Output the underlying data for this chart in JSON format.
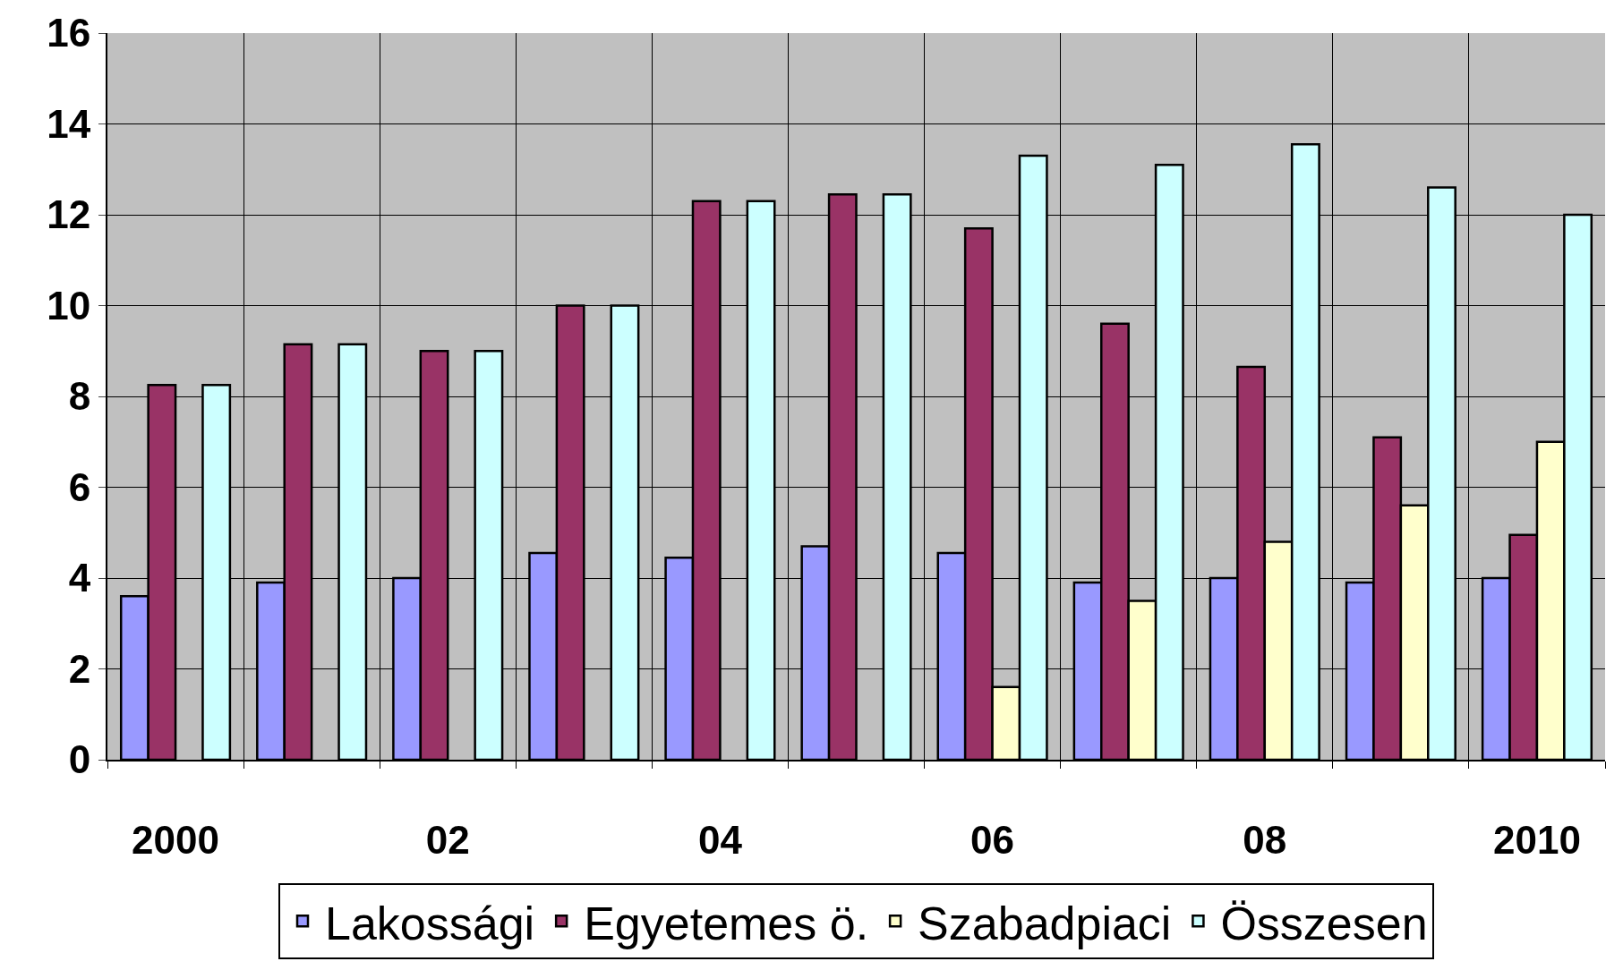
{
  "chart_data": {
    "type": "bar",
    "categories": [
      "2000",
      null,
      "02",
      null,
      "04",
      null,
      "06",
      null,
      "08",
      null,
      "2010"
    ],
    "series": [
      {
        "name": "Lakossági",
        "color": "#9999ff",
        "values": [
          3.6,
          3.9,
          4.0,
          4.55,
          4.45,
          4.7,
          4.55,
          3.9,
          4.0,
          3.9,
          4.0
        ]
      },
      {
        "name": "Egyetemes ö.",
        "color": "#993366",
        "values": [
          8.25,
          9.15,
          9.0,
          10.0,
          12.3,
          12.45,
          11.7,
          9.6,
          8.65,
          7.1,
          4.95
        ]
      },
      {
        "name": "Szabadpiaci",
        "color": "#ffffcc",
        "values": [
          null,
          null,
          null,
          null,
          null,
          null,
          1.6,
          3.5,
          4.8,
          5.6,
          7.0
        ]
      },
      {
        "name": "Összesen",
        "color": "#ccffff",
        "values": [
          8.25,
          9.15,
          9.0,
          10.0,
          12.3,
          12.45,
          13.3,
          13.1,
          13.55,
          12.6,
          12.0
        ]
      }
    ],
    "ylim": [
      0,
      16
    ],
    "yticks": [
      0,
      2,
      4,
      6,
      8,
      10,
      12,
      14,
      16
    ],
    "grid": true,
    "legend": "bottom"
  }
}
